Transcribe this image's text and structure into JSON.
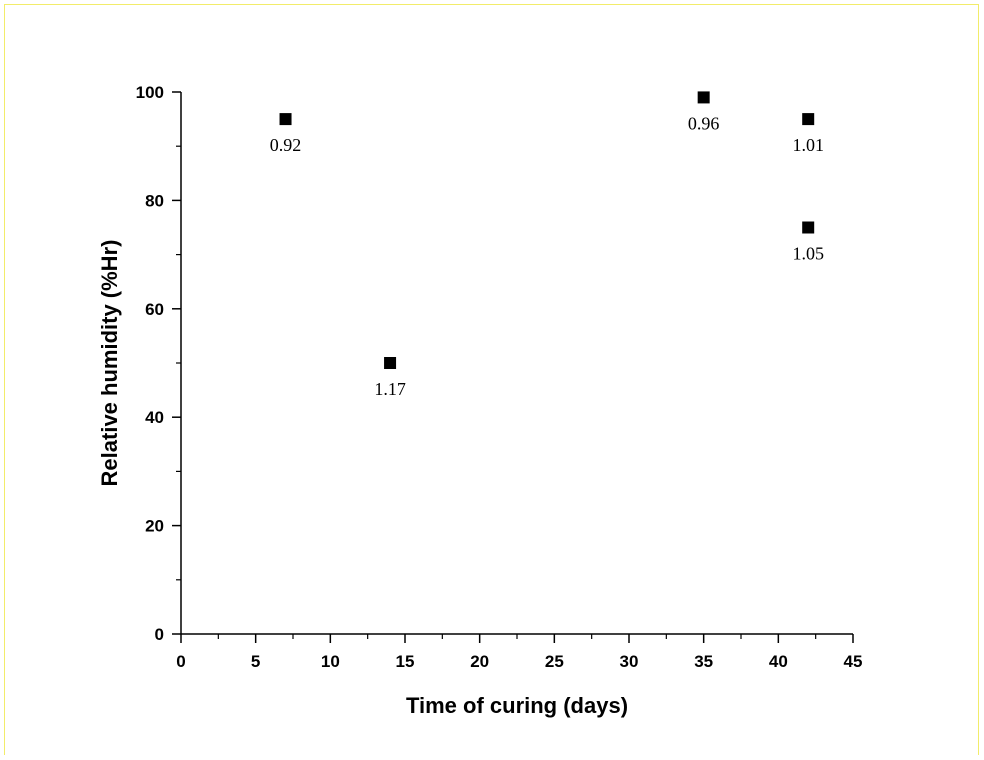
{
  "chart_data": {
    "type": "scatter",
    "title": "",
    "xlabel": "Time of curing (days)",
    "ylabel": "Relative humidity (%Hr)",
    "xlim": [
      0,
      45
    ],
    "ylim": [
      0,
      100
    ],
    "xticks": [
      "0",
      "5",
      "10",
      "15",
      "20",
      "25",
      "30",
      "35",
      "40",
      "45"
    ],
    "yticks": [
      "0",
      "20",
      "40",
      "60",
      "80",
      "100"
    ],
    "grid": false,
    "marker": "square",
    "colors": {
      "marker": "#000000",
      "frame_border": "#f2ec6a"
    },
    "points": [
      {
        "x": 7,
        "y": 95,
        "label": "0.92"
      },
      {
        "x": 14,
        "y": 50,
        "label": "1.17"
      },
      {
        "x": 35,
        "y": 99,
        "label": "0.96"
      },
      {
        "x": 42,
        "y": 95,
        "label": "1.01"
      },
      {
        "x": 42,
        "y": 75,
        "label": "1.05"
      }
    ]
  }
}
